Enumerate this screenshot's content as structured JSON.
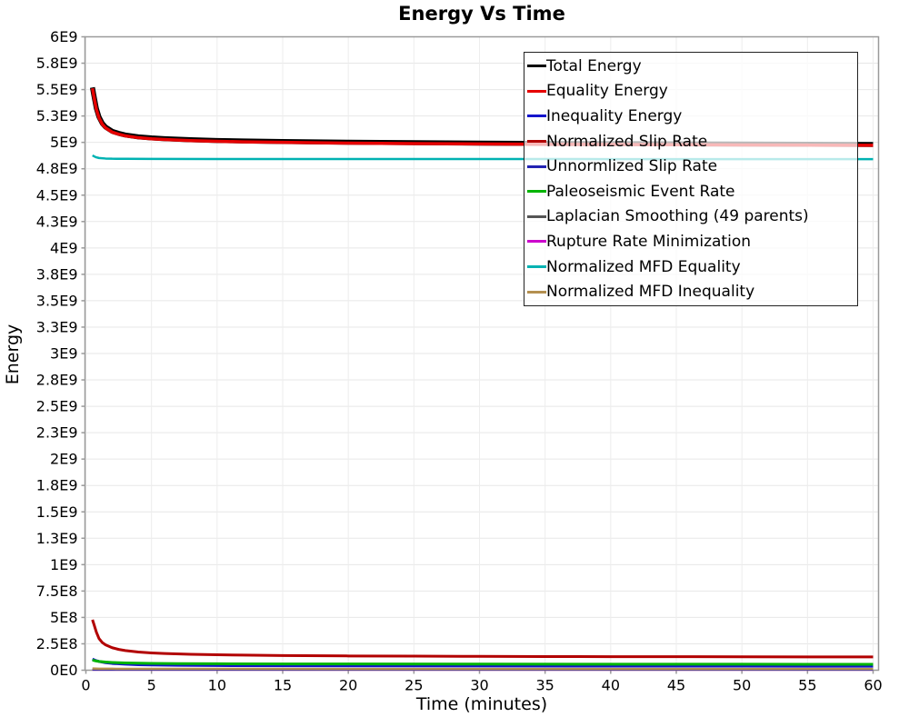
{
  "title": "Energy Vs Time",
  "axes": {
    "x": {
      "label": "Time (minutes)",
      "tick_values": [
        0,
        5,
        10,
        15,
        20,
        25,
        30,
        35,
        40,
        45,
        50,
        55,
        60
      ],
      "tick_labels": [
        "0",
        "5",
        "10",
        "15",
        "20",
        "25",
        "30",
        "35",
        "40",
        "45",
        "50",
        "55",
        "60"
      ]
    },
    "y": {
      "label": "Energy",
      "tick_values": [
        0,
        250000000.0,
        500000000.0,
        750000000.0,
        1000000000.0,
        1250000000.0,
        1500000000.0,
        1750000000.0,
        2000000000.0,
        2250000000.0,
        2500000000.0,
        2750000000.0,
        3000000000.0,
        3250000000.0,
        3500000000.0,
        3750000000.0,
        4000000000.0,
        4250000000.0,
        4500000000.0,
        4750000000.0,
        5000000000.0,
        5250000000.0,
        5500000000.0,
        5750000000.0,
        6000000000.0
      ],
      "tick_labels": [
        "0E0",
        "2.5E8",
        "5E8",
        "7.5E8",
        "1E9",
        "1.3E9",
        "1.5E9",
        "1.8E9",
        "2E9",
        "2.3E9",
        "2.5E9",
        "2.8E9",
        "3E9",
        "3.3E9",
        "3.5E9",
        "3.8E9",
        "4E9",
        "4.3E9",
        "4.5E9",
        "4.8E9",
        "5E9",
        "5.3E9",
        "5.5E9",
        "5.8E9",
        "6E9"
      ]
    }
  },
  "chart_data": {
    "type": "line",
    "title": "Energy Vs Time",
    "xlabel": "Time (minutes)",
    "ylabel": "Energy",
    "xlim": [
      0,
      60
    ],
    "ylim": [
      0,
      6000000000.0
    ],
    "grid": true,
    "legend_position": "top-right",
    "series": [
      {
        "name": "Total Energy",
        "color": "#000000",
        "x": [
          0.5,
          0.6,
          0.8,
          1,
          1.25,
          1.5,
          2,
          2.5,
          3,
          4,
          5,
          6,
          8,
          10,
          12,
          15,
          20,
          25,
          30,
          35,
          40,
          45,
          50,
          55,
          60
        ],
        "y": [
          5520000000.0,
          5450000000.0,
          5320000000.0,
          5240000000.0,
          5180000000.0,
          5145000000.0,
          5105000000.0,
          5085000000.0,
          5070000000.0,
          5052000000.0,
          5042000000.0,
          5035000000.0,
          5025000000.0,
          5018000000.0,
          5013000000.0,
          5008000000.0,
          5001000000.0,
          4997000000.0,
          4993000000.0,
          4990000000.0,
          4988000000.0,
          4986000000.0,
          4984000000.0,
          4982000000.0,
          4980000000.0
        ]
      },
      {
        "name": "Equality Energy",
        "color": "#e60000",
        "x": [
          0.5,
          0.6,
          0.8,
          1,
          1.25,
          1.5,
          2,
          2.5,
          3,
          4,
          5,
          6,
          8,
          10,
          12,
          15,
          20,
          25,
          30,
          35,
          40,
          45,
          50,
          55,
          60
        ],
        "y": [
          5512000000.0,
          5442000000.0,
          5312000000.0,
          5232000000.0,
          5172000000.0,
          5137000000.0,
          5097000000.0,
          5077000000.0,
          5062000000.0,
          5044000000.0,
          5034000000.0,
          5027000000.0,
          5017000000.0,
          5010000000.0,
          5005000000.0,
          5000000000.0,
          4993000000.0,
          4989000000.0,
          4985000000.0,
          4982000000.0,
          4980000000.0,
          4978000000.0,
          4976000000.0,
          4974000000.0,
          4972000000.0
        ]
      },
      {
        "name": "Inequality Energy",
        "color": "#1414cc",
        "x": [
          0.5,
          0.75,
          1,
          1.5,
          2,
          3,
          4,
          5,
          7,
          10,
          15,
          20,
          30,
          40,
          50,
          60
        ],
        "y": [
          106000000.0,
          92000000.0,
          83000000.0,
          71000000.0,
          64000000.0,
          56500000.0,
          52000000.0,
          49000000.0,
          46000000.0,
          43700000.0,
          41800000.0,
          40800000.0,
          39600000.0,
          38900000.0,
          38400000.0,
          38000000.0
        ]
      },
      {
        "name": "Normalized Slip Rate",
        "color": "#b20000",
        "x": [
          0.5,
          0.6,
          0.8,
          1,
          1.25,
          1.5,
          2,
          2.5,
          3,
          4,
          5,
          6,
          8,
          10,
          12,
          15,
          20,
          25,
          30,
          35,
          40,
          45,
          50,
          55,
          60
        ],
        "y": [
          478000000.0,
          440000000.0,
          360000000.0,
          300000000.0,
          262000000.0,
          240000000.0,
          213000000.0,
          197000000.0,
          186000000.0,
          172000000.0,
          164000000.0,
          158000000.0,
          151000000.0,
          146000000.0,
          143000000.0,
          139000000.0,
          135000000.0,
          133000000.0,
          131000000.0,
          129500000.0,
          128500000.0,
          127700000.0,
          127000000.0,
          126400000.0,
          126000000.0
        ]
      },
      {
        "name": "Unnormlized Slip Rate",
        "color": "#2222b2",
        "x": [
          0.5,
          1,
          2,
          5,
          60
        ],
        "y": [
          7000000.0,
          6000000.0,
          5500000.0,
          5000000.0,
          4800000.0
        ]
      },
      {
        "name": "Paleoseismic Event Rate",
        "color": "#00b400",
        "x": [
          0.5,
          0.75,
          1,
          1.5,
          2,
          3,
          4,
          5,
          7,
          10,
          15,
          20,
          30,
          40,
          50,
          60
        ],
        "y": [
          96000000.0,
          88000000.0,
          83000000.0,
          77000000.0,
          73500000.0,
          69000000.0,
          66500000.0,
          65000000.0,
          62800000.0,
          61000000.0,
          59500000.0,
          58700000.0,
          57700000.0,
          57000000.0,
          56500000.0,
          56000000.0
        ]
      },
      {
        "name": "Laplacian Smoothing (49 parents)",
        "color": "#555555",
        "x": [
          0.5,
          1,
          5,
          60
        ],
        "y": [
          3500000.0,
          3000000.0,
          2800000.0,
          2700000.0
        ]
      },
      {
        "name": "Rupture Rate Minimization",
        "color": "#cc00cc",
        "x": [
          0.5,
          1,
          5,
          60
        ],
        "y": [
          1500000.0,
          1300000.0,
          1200000.0,
          1200000.0
        ]
      },
      {
        "name": "Normalized MFD Equality",
        "color": "#00b2b2",
        "x": [
          0.5,
          0.75,
          1,
          1.5,
          2,
          3,
          5,
          10,
          20,
          30,
          40,
          50,
          60
        ],
        "y": [
          4876000000.0,
          4860000000.0,
          4852000000.0,
          4847000000.0,
          4845000000.0,
          4844000000.0,
          4843000000.0,
          4842500000.0,
          4842000000.0,
          4841800000.0,
          4841600000.0,
          4841400000.0,
          4841200000.0
        ]
      },
      {
        "name": "Normalized MFD Inequality",
        "color": "#b49050",
        "x": [
          0.5,
          1,
          2,
          5,
          10,
          30,
          60
        ],
        "y": [
          16000000.0,
          14500000.0,
          13500000.0,
          12800000.0,
          12400000.0,
          12100000.0,
          12000000.0
        ]
      }
    ]
  }
}
